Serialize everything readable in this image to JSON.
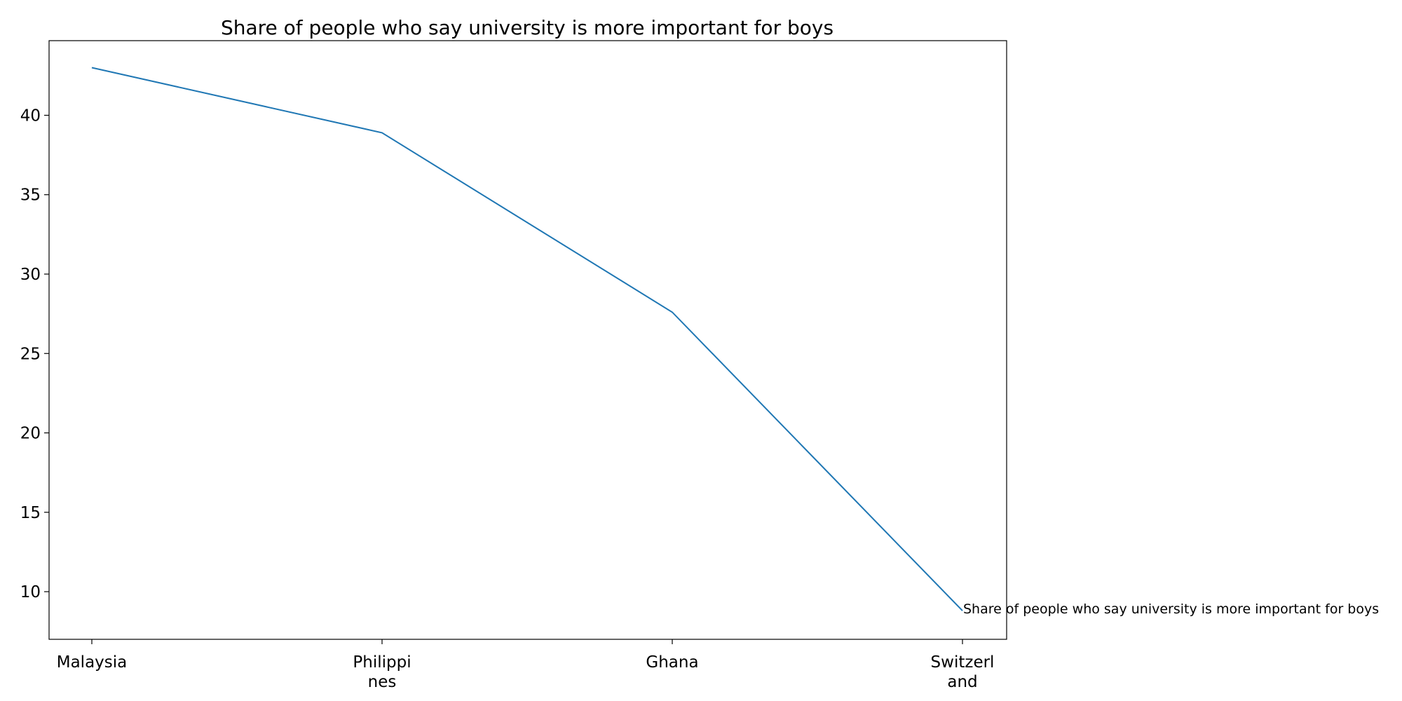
{
  "chart_data": {
    "type": "line",
    "title": "Share of people who say university is more important for boys",
    "xlabel": "",
    "ylabel": "",
    "categories": [
      "Malaysia",
      "Philippines",
      "Ghana",
      "Switzerland"
    ],
    "category_tick_lines": [
      [
        "Malaysia"
      ],
      [
        "Philippi",
        "nes"
      ],
      [
        "Ghana"
      ],
      [
        "Switzerl",
        "and"
      ]
    ],
    "series": [
      {
        "name": "Share of people who say university is more important for boys",
        "values": [
          43.0,
          38.9,
          27.6,
          8.8
        ]
      }
    ],
    "ylim": [
      7.0,
      44.7
    ],
    "yticks": [
      10,
      15,
      20,
      25,
      30,
      35,
      40
    ],
    "grid": false,
    "legend": "none",
    "line_color": "#1f77b4"
  }
}
